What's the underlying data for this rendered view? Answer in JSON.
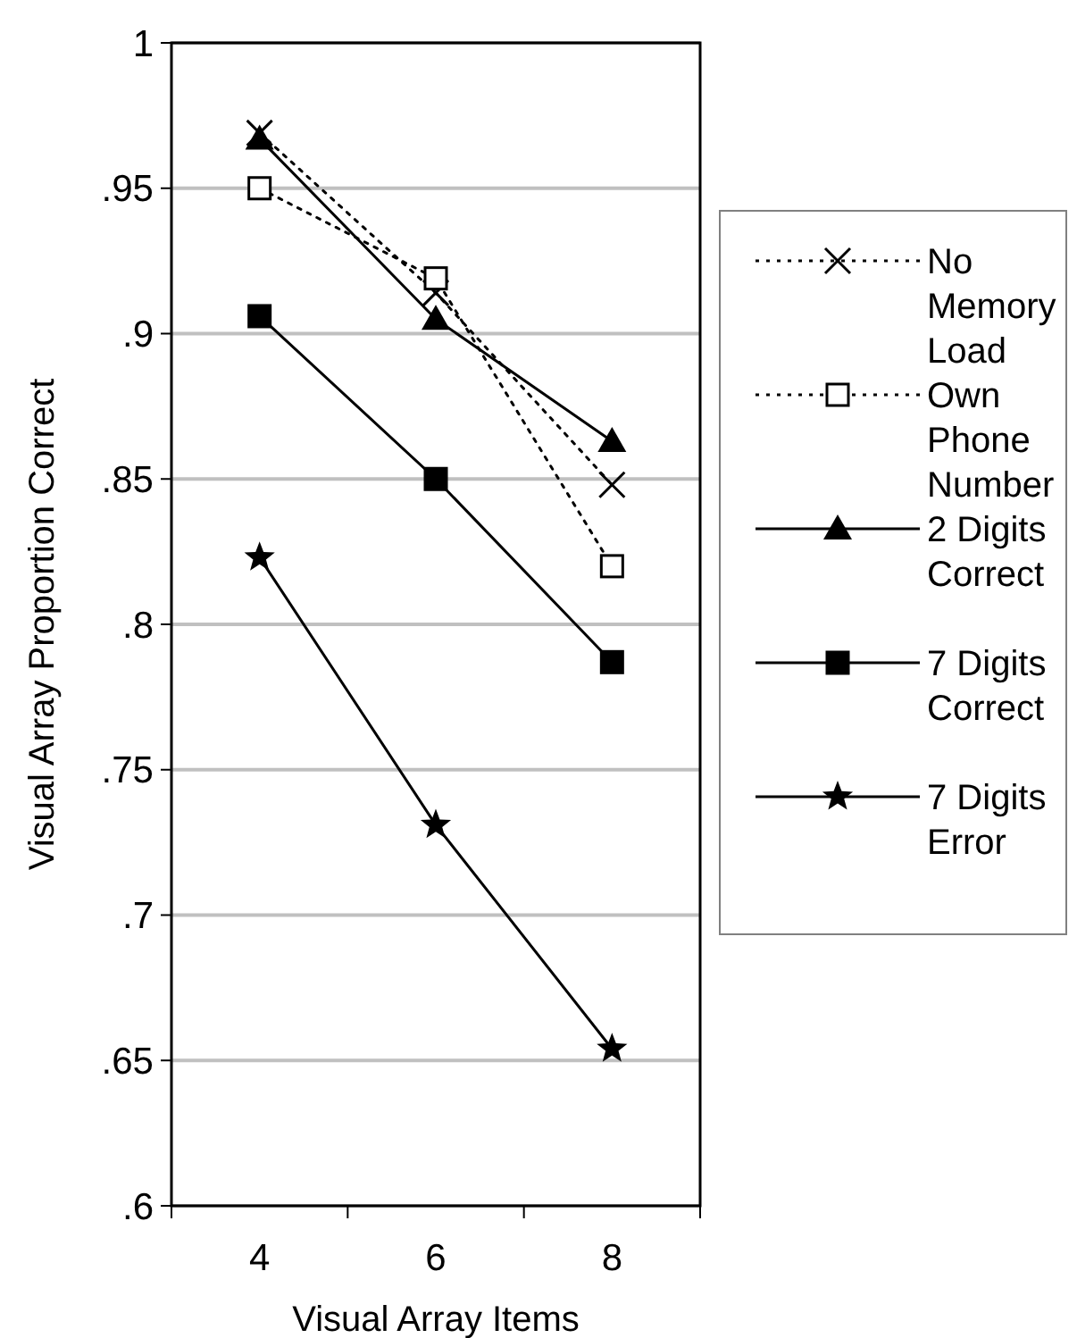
{
  "chart_data": {
    "type": "line",
    "xlabel": "Visual Array Items",
    "ylabel": "Visual Array Proportion Correct",
    "categories": [
      "4",
      "6",
      "8"
    ],
    "ylim": [
      0.6,
      1
    ],
    "yticks": [
      {
        "value": 0.6,
        "label": ".6"
      },
      {
        "value": 0.65,
        "label": ".65"
      },
      {
        "value": 0.7,
        "label": ".7"
      },
      {
        "value": 0.75,
        "label": ".75"
      },
      {
        "value": 0.8,
        "label": ".8"
      },
      {
        "value": 0.85,
        "label": ".85"
      },
      {
        "value": 0.9,
        "label": ".9"
      },
      {
        "value": 0.95,
        "label": ".95"
      },
      {
        "value": 1,
        "label": "1"
      }
    ],
    "grid": "y",
    "legend": "right",
    "series": [
      {
        "name": "No Memory Load",
        "color": "#000000",
        "marker": "cross",
        "line_style": "dotted",
        "values": [
          0.969,
          0.914,
          0.848
        ]
      },
      {
        "name": "Own Phone Number",
        "color": "#000000",
        "marker": "square",
        "line_style": "dotted",
        "values": [
          0.95,
          0.919,
          0.82
        ]
      },
      {
        "name": "2 Digits Correct",
        "color": "#000000",
        "marker": "triangle",
        "line_style": "solid",
        "values": [
          0.967,
          0.905,
          0.863
        ]
      },
      {
        "name": "7 Digits Correct",
        "color": "#000000",
        "marker": "square",
        "line_style": "solid",
        "values": [
          0.906,
          0.85,
          0.787
        ]
      },
      {
        "name": "7 Digits Error",
        "color": "#000000",
        "marker": "star",
        "line_style": "solid",
        "values": [
          0.823,
          0.731,
          0.654
        ]
      }
    ]
  }
}
